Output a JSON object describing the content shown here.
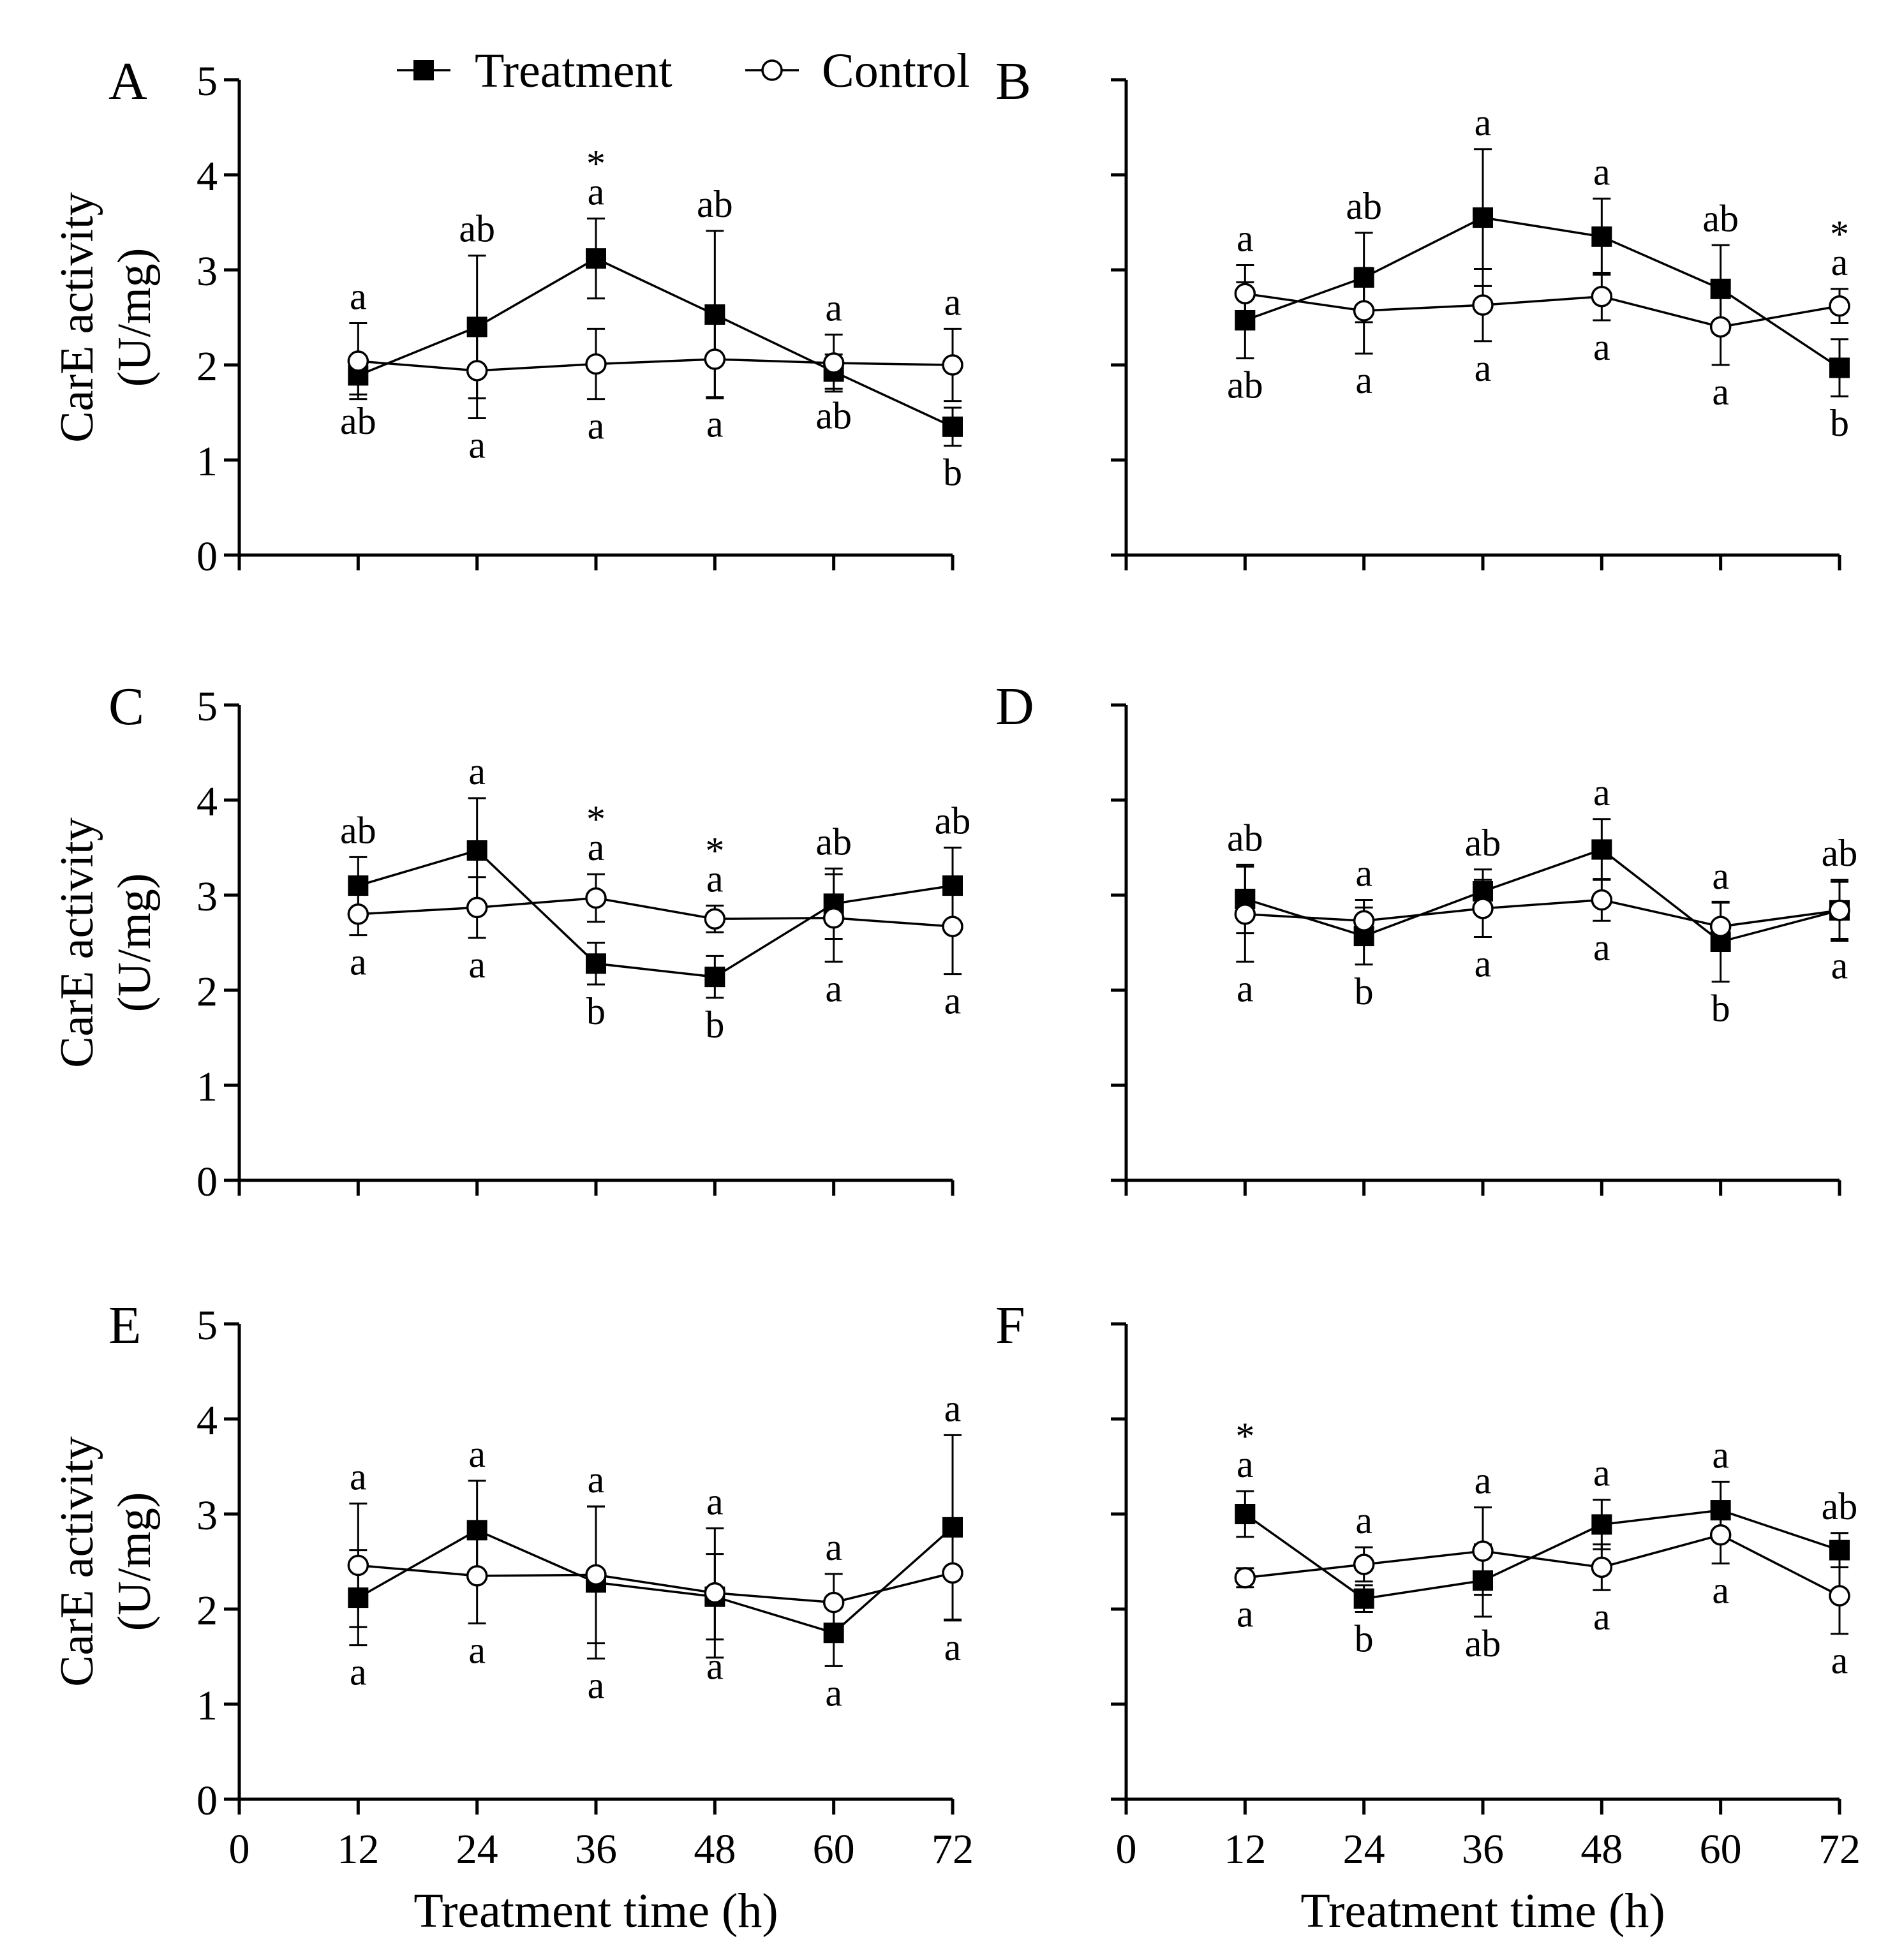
{
  "chart_data": {
    "type": "line",
    "x": [
      12,
      24,
      36,
      48,
      60,
      72
    ],
    "x_ticks": [
      "0",
      "12",
      "24",
      "36",
      "48",
      "60",
      "72"
    ],
    "y_ticks": [
      "0",
      "1",
      "2",
      "3",
      "4",
      "5"
    ],
    "xlim": [
      0,
      72
    ],
    "ylim": [
      0,
      5
    ],
    "xlabel": "Treatment time (h)",
    "ylabel_line1": "CarE activity",
    "ylabel_line2": "(U/mg)",
    "legend": {
      "position": "top",
      "treatment": "Treatment",
      "control": "Control"
    },
    "panels": [
      {
        "label": "A",
        "treatment": {
          "values": [
            1.89,
            2.4,
            3.12,
            2.53,
            1.93,
            1.35
          ],
          "errors": [
            0.2,
            0.75,
            0.42,
            0.88,
            0.18,
            0.2
          ]
        },
        "control": {
          "values": [
            2.04,
            1.94,
            2.01,
            2.06,
            2.02,
            2.0
          ],
          "errors": [
            0.4,
            0.5,
            0.37,
            0.4,
            0.3,
            0.38
          ]
        },
        "treatment_letters": [
          "ab",
          "ab",
          "a",
          "ab",
          "ab",
          "b"
        ],
        "control_letters": [
          "a",
          "a",
          "a",
          "a",
          "a",
          "a"
        ],
        "treatment_letters_pos": [
          "below",
          "above",
          "above",
          "above",
          "below",
          "below"
        ],
        "control_letters_pos": [
          "above",
          "below",
          "below",
          "below",
          "above",
          "above"
        ],
        "asterisk": [
          false,
          false,
          true,
          false,
          false,
          false
        ]
      },
      {
        "label": "B",
        "treatment": {
          "values": [
            2.47,
            2.92,
            3.55,
            3.35,
            2.8,
            1.97
          ],
          "errors": [
            0.4,
            0.47,
            0.72,
            0.4,
            0.46,
            0.3
          ]
        },
        "control": {
          "values": [
            2.75,
            2.57,
            2.63,
            2.72,
            2.4,
            2.62
          ],
          "errors": [
            0.3,
            0.45,
            0.38,
            0.25,
            0.4,
            0.18
          ]
        },
        "treatment_letters": [
          "ab",
          "ab",
          "a",
          "a",
          "ab",
          "b"
        ],
        "control_letters": [
          "a",
          "a",
          "a",
          "a",
          "a",
          "a"
        ],
        "treatment_letters_pos": [
          "below",
          "above",
          "above",
          "above",
          "above",
          "below"
        ],
        "control_letters_pos": [
          "above",
          "below",
          "below",
          "below",
          "below",
          "above"
        ],
        "asterisk": [
          false,
          false,
          false,
          false,
          false,
          true
        ]
      },
      {
        "label": "C",
        "treatment": {
          "values": [
            3.1,
            3.47,
            2.28,
            2.14,
            2.91,
            3.1
          ],
          "errors": [
            0.3,
            0.55,
            0.22,
            0.22,
            0.37,
            0.4
          ]
        },
        "control": {
          "values": [
            2.8,
            2.87,
            2.97,
            2.75,
            2.76,
            2.67
          ],
          "errors": [
            0.22,
            0.32,
            0.25,
            0.14,
            0.46,
            0.5
          ]
        },
        "treatment_letters": [
          "ab",
          "a",
          "b",
          "b",
          "ab",
          "ab"
        ],
        "control_letters": [
          "a",
          "a",
          "a",
          "a",
          "a",
          "a"
        ],
        "treatment_letters_pos": [
          "above",
          "above",
          "below",
          "below",
          "above",
          "above"
        ],
        "control_letters_pos": [
          "below",
          "below",
          "above",
          "above",
          "below",
          "below"
        ],
        "asterisk": [
          false,
          false,
          true,
          true,
          false,
          false
        ]
      },
      {
        "label": "D",
        "treatment": {
          "values": [
            2.96,
            2.57,
            3.04,
            3.48,
            2.51,
            2.84
          ],
          "errors": [
            0.36,
            0.3,
            0.23,
            0.32,
            0.42,
            0.32
          ]
        },
        "control": {
          "values": [
            2.8,
            2.73,
            2.86,
            2.95,
            2.67,
            2.84
          ],
          "errors": [
            0.5,
            0.22,
            0.3,
            0.22,
            0.25,
            0.3
          ]
        },
        "treatment_letters": [
          "ab",
          "b",
          "ab",
          "a",
          "b",
          "ab"
        ],
        "control_letters": [
          "a",
          "a",
          "a",
          "a",
          "a",
          "a"
        ],
        "treatment_letters_pos": [
          "above",
          "below",
          "above",
          "above",
          "below",
          "above"
        ],
        "control_letters_pos": [
          "below",
          "above",
          "below",
          "below",
          "above",
          "below"
        ],
        "asterisk": [
          false,
          false,
          false,
          false,
          false,
          false
        ]
      },
      {
        "label": "E",
        "treatment": {
          "values": [
            2.12,
            2.83,
            2.28,
            2.13,
            1.75,
            2.86
          ],
          "errors": [
            0.5,
            0.52,
            0.8,
            0.45,
            0.35,
            0.97
          ]
        },
        "control": {
          "values": [
            2.46,
            2.35,
            2.36,
            2.17,
            2.07,
            2.38
          ],
          "errors": [
            0.65,
            0.5,
            0.72,
            0.68,
            0.3,
            0.5
          ]
        },
        "treatment_letters": [
          "a",
          "a",
          "a",
          "a",
          "a",
          "a"
        ],
        "control_letters": [
          "a",
          "a",
          "a",
          "a",
          "a",
          "a"
        ],
        "treatment_letters_pos": [
          "below",
          "above",
          "below",
          "below",
          "below",
          "above"
        ],
        "control_letters_pos": [
          "above",
          "below",
          "above",
          "above",
          "above",
          "below"
        ],
        "asterisk": [
          false,
          false,
          false,
          false,
          false,
          false
        ]
      },
      {
        "label": "F",
        "treatment": {
          "values": [
            3.0,
            2.11,
            2.3,
            2.89,
            3.04,
            2.62
          ],
          "errors": [
            0.24,
            0.14,
            0.38,
            0.26,
            0.3,
            0.18
          ]
        },
        "control": {
          "values": [
            2.33,
            2.47,
            2.61,
            2.44,
            2.78,
            2.14
          ],
          "errors": [
            0.1,
            0.18,
            0.46,
            0.24,
            0.3,
            0.4
          ]
        },
        "treatment_letters": [
          "a",
          "b",
          "ab",
          "a",
          "a",
          "ab"
        ],
        "control_letters": [
          "a",
          "a",
          "a",
          "a",
          "a",
          "a"
        ],
        "treatment_letters_pos": [
          "above",
          "below",
          "below",
          "above",
          "above",
          "above"
        ],
        "control_letters_pos": [
          "below",
          "above",
          "above",
          "below",
          "below",
          "below"
        ],
        "asterisk": [
          true,
          false,
          false,
          false,
          false,
          false
        ]
      }
    ]
  }
}
